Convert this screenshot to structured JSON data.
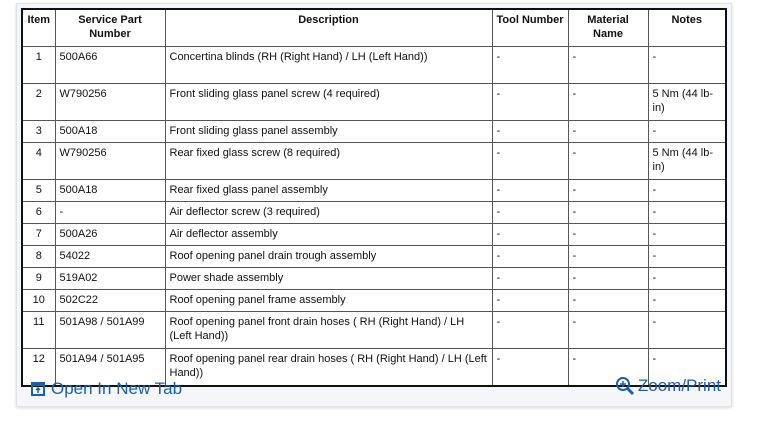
{
  "table": {
    "headers": [
      "Item",
      "Service Part Number",
      "Description",
      "Tool Number",
      "Material Name",
      "Notes"
    ],
    "rows": [
      [
        "1",
        "500A66",
        "Concertina blinds (RH (Right Hand) / LH (Left Hand))",
        "-",
        "-",
        "-"
      ],
      [
        "2",
        "W790256",
        "Front sliding glass panel screw (4 required)",
        "-",
        "-",
        "5 Nm (44 lb-in)"
      ],
      [
        "3",
        "500A18",
        "Front sliding glass panel assembly",
        "-",
        "-",
        "-"
      ],
      [
        "4",
        "W790256",
        "Rear fixed glass screw (8 required)",
        "-",
        "-",
        "5 Nm (44 lb-in)"
      ],
      [
        "5",
        "500A18",
        "Rear fixed glass panel assembly",
        "-",
        "-",
        "-"
      ],
      [
        "6",
        "-",
        "Air deflector screw (3 required)",
        "-",
        "-",
        "-"
      ],
      [
        "7",
        "500A26",
        "Air deflector assembly",
        "-",
        "-",
        "-"
      ],
      [
        "8",
        "54022",
        "Roof opening panel drain trough assembly",
        "-",
        "-",
        "-"
      ],
      [
        "9",
        "519A02",
        "Power shade assembly",
        "-",
        "-",
        "-"
      ],
      [
        "10",
        "502C22",
        "Roof opening panel frame assembly",
        "-",
        "-",
        "-"
      ],
      [
        "11",
        "501A98 / 501A99",
        "Roof opening panel front drain hoses ( RH (Right Hand) / LH (Left Hand))",
        "-",
        "-",
        "-"
      ],
      [
        "12",
        "501A94 / 501A95",
        "Roof opening panel rear drain hoses ( RH (Right Hand) / LH (Left Hand))",
        "-",
        "-",
        "-"
      ]
    ]
  },
  "footer": {
    "open_label": "Open In New Tab",
    "zoom_label": "Zoom/Print",
    "link_color": "#1e5ea8",
    "open_icon": "open-in-new-tab-icon",
    "zoom_icon": "magnifier-plus-icon"
  }
}
